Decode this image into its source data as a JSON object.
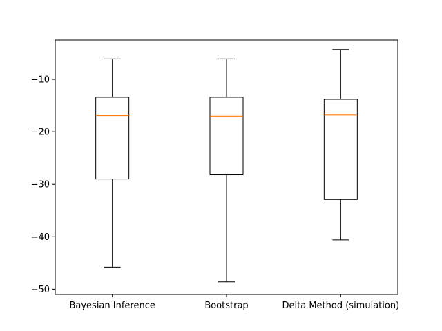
{
  "chart_data": {
    "type": "boxplot",
    "title": "",
    "xlabel": "",
    "ylabel": "",
    "ylim": [
      -51,
      -2.5
    ],
    "y_ticks": [
      {
        "value": -10,
        "label": "−10"
      },
      {
        "value": -20,
        "label": "−20"
      },
      {
        "value": -30,
        "label": "−30"
      },
      {
        "value": -40,
        "label": "−40"
      },
      {
        "value": -50,
        "label": "−50"
      }
    ],
    "categories": [
      "Bayesian Inference",
      "Bootstrap",
      "Delta Method (simulation)"
    ],
    "boxes": [
      {
        "whisker_low": -45.8,
        "q1": -29.0,
        "median": -16.9,
        "q3": -13.4,
        "whisker_high": -6.1
      },
      {
        "whisker_low": -48.6,
        "q1": -28.2,
        "median": -17.0,
        "q3": -13.4,
        "whisker_high": -6.1
      },
      {
        "whisker_low": -40.6,
        "q1": -32.9,
        "median": -16.8,
        "q3": -13.8,
        "whisker_high": -4.3
      }
    ],
    "colors": {
      "box": "#000000",
      "median": "#ff7f0e",
      "axes": "#000000",
      "background": "#ffffff"
    },
    "grid": false,
    "legend": "none"
  }
}
